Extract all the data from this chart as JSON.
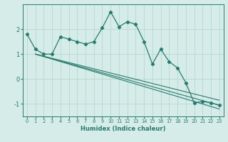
{
  "xlabel": "Humidex (Indice chaleur)",
  "x": [
    0,
    1,
    2,
    3,
    4,
    5,
    6,
    7,
    8,
    9,
    10,
    11,
    12,
    13,
    14,
    15,
    16,
    17,
    18,
    19,
    20,
    21,
    22,
    23
  ],
  "main_line_y": [
    1.8,
    1.2,
    1.0,
    1.0,
    1.7,
    1.6,
    1.5,
    1.4,
    1.5,
    2.05,
    2.7,
    2.1,
    2.3,
    2.2,
    1.5,
    0.6,
    1.2,
    0.7,
    0.45,
    -0.15,
    -0.95,
    -0.9,
    -0.95,
    -1.05
  ],
  "line_color": "#2a7a6e",
  "bg_color": "#d5ece8",
  "grid_color": "#b8d8d4",
  "ylim": [
    -1.5,
    3.0
  ],
  "yticks": [
    -1,
    0,
    1,
    2
  ],
  "xticks": [
    0,
    1,
    2,
    3,
    4,
    5,
    6,
    7,
    8,
    9,
    10,
    11,
    12,
    13,
    14,
    15,
    16,
    17,
    18,
    19,
    20,
    21,
    22,
    23
  ],
  "linear_lines": [
    {
      "x0": 1,
      "y0": 1.0,
      "x1": 23,
      "y1": -1.05
    },
    {
      "x0": 1,
      "y0": 1.0,
      "x1": 23,
      "y1": -0.85
    },
    {
      "x0": 1,
      "y0": 1.0,
      "x1": 23,
      "y1": -1.2
    }
  ]
}
